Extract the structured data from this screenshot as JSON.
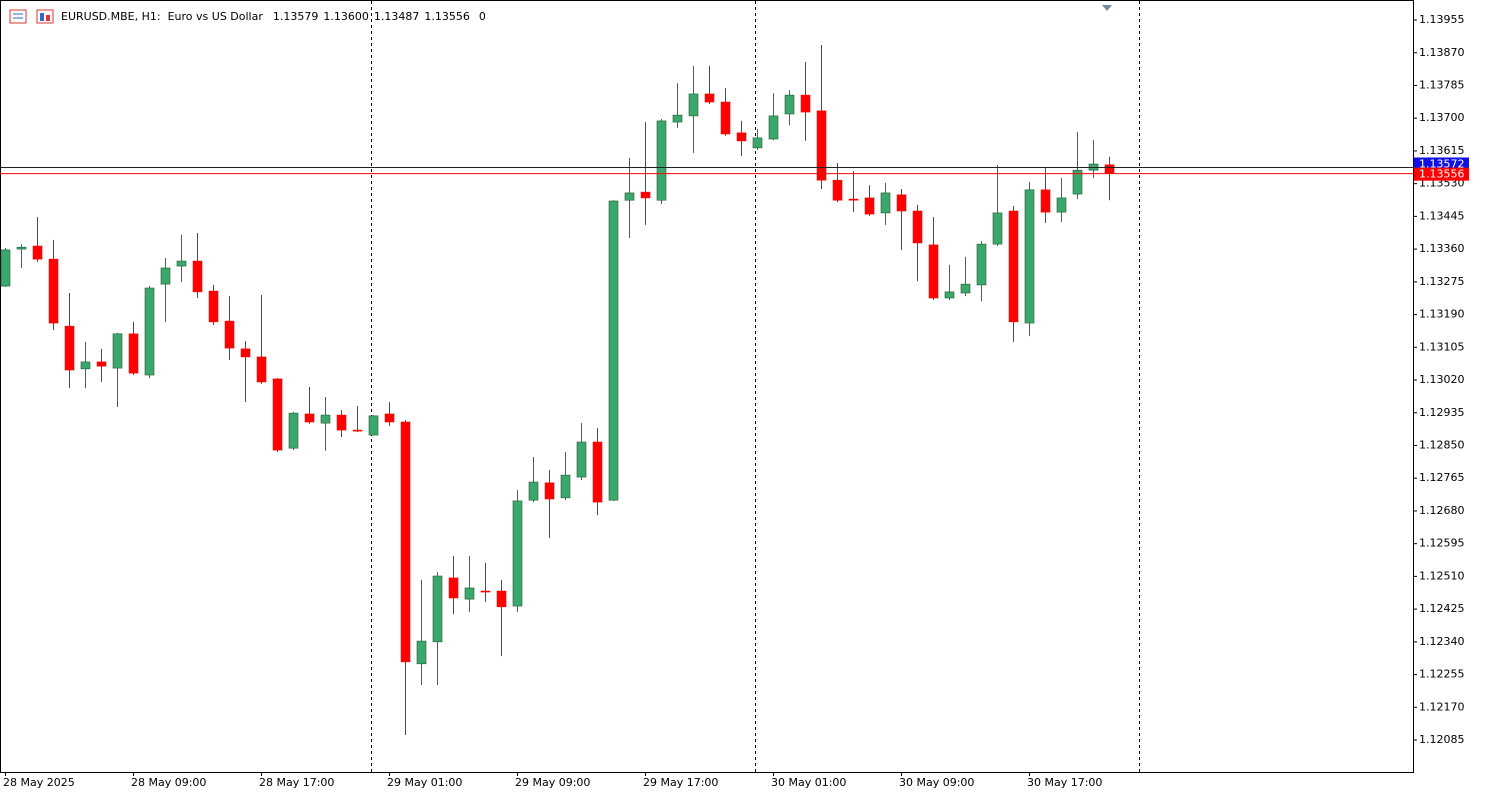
{
  "chart_data": {
    "type": "candlestick",
    "title": "EURUSD.MBE, H1:  Euro vs US Dollar",
    "last_bar_labels": [
      "1.13579",
      "1.13600",
      "1.13487",
      "1.13556"
    ],
    "info": "0",
    "categories": [
      "28 May 2025",
      null,
      null,
      null,
      null,
      null,
      null,
      null,
      "28 May 09:00",
      null,
      null,
      null,
      null,
      null,
      null,
      null,
      "28 May 17:00",
      null,
      null,
      null,
      null,
      null,
      null,
      null,
      "29 May 01:00",
      null,
      null,
      null,
      null,
      null,
      null,
      null,
      "29 May 09:00",
      null,
      null,
      null,
      null,
      null,
      null,
      null,
      "29 May 17:00",
      null,
      null,
      null,
      null,
      null,
      null,
      null,
      "30 May 01:00",
      null,
      null,
      null,
      null,
      null,
      null,
      null,
      "30 May 09:00",
      null,
      null,
      null,
      null,
      null,
      null,
      null,
      "30 May 17:00",
      null,
      null,
      null,
      null,
      null
    ],
    "open": [
      1.13264,
      1.1336,
      1.13368,
      1.13334,
      1.1316,
      1.13049,
      1.13067,
      1.13051,
      1.1314,
      1.13033,
      1.13269,
      1.13316,
      1.13329,
      1.13251,
      1.13173,
      1.13101,
      1.1308,
      1.13023,
      1.12843,
      1.12932,
      1.12908,
      1.12929,
      1.1289,
      1.12877,
      1.12932,
      1.12911,
      1.12283,
      1.1234,
      1.12506,
      1.12451,
      1.12472,
      1.12472,
      1.12433,
      1.12708,
      1.12753,
      1.12714,
      1.12768,
      1.12859,
      1.12708,
      1.13487,
      1.13508,
      1.13487,
      1.1369,
      1.13706,
      1.13763,
      1.13742,
      1.13662,
      1.13623,
      1.13646,
      1.13711,
      1.1376,
      1.13719,
      1.13539,
      1.1349,
      1.13493,
      1.13454,
      1.13501,
      1.13459,
      1.13371,
      1.13233,
      1.13246,
      1.13267,
      1.13373,
      1.13459,
      1.13168,
      1.13514,
      1.13456,
      1.13503,
      1.13565,
      1.13579
    ],
    "high": [
      1.13363,
      1.13373,
      1.13443,
      1.13384,
      1.13246,
      1.13119,
      1.13101,
      1.13142,
      1.13171,
      1.13264,
      1.13337,
      1.13397,
      1.13402,
      1.13267,
      1.13238,
      1.13121,
      1.13241,
      1.13025,
      1.12937,
      1.13002,
      1.12976,
      1.12942,
      1.12953,
      1.12929,
      1.12963,
      1.12916,
      1.12501,
      1.12521,
      1.12563,
      1.12563,
      1.12545,
      1.12501,
      1.12734,
      1.1282,
      1.12786,
      1.12833,
      1.12908,
      1.12895,
      1.13487,
      1.13597,
      1.1369,
      1.13698,
      1.13791,
      1.13836,
      1.13836,
      1.13778,
      1.13693,
      1.13672,
      1.13765,
      1.13773,
      1.13846,
      1.1389,
      1.13584,
      1.13563,
      1.13526,
      1.13532,
      1.13516,
      1.13475,
      1.13443,
      1.13319,
      1.1334,
      1.13381,
      1.13578,
      1.13472,
      1.13534,
      1.13573,
      1.13545,
      1.13664,
      1.13643,
      1.136
    ],
    "low": [
      1.13262,
      1.13311,
      1.13327,
      1.1315,
      1.12999,
      1.12999,
      1.13015,
      1.1295,
      1.13033,
      1.13025,
      1.13171,
      1.13275,
      1.13233,
      1.13163,
      1.13072,
      1.12963,
      1.1301,
      1.12833,
      1.12838,
      1.12906,
      1.12836,
      1.12872,
      1.12885,
      1.12877,
      1.12901,
      1.12098,
      1.12228,
      1.12228,
      1.12412,
      1.12418,
      1.12444,
      1.12303,
      1.12418,
      1.12703,
      1.1261,
      1.12708,
      1.1276,
      1.12669,
      1.12706,
      1.13389,
      1.13423,
      1.13477,
      1.13675,
      1.1361,
      1.13737,
      1.13654,
      1.13602,
      1.13617,
      1.13643,
      1.13682,
      1.13641,
      1.13516,
      1.13482,
      1.13456,
      1.13446,
      1.13423,
      1.13358,
      1.13277,
      1.13228,
      1.13228,
      1.13238,
      1.13225,
      1.13368,
      1.13119,
      1.13134,
      1.13428,
      1.1343,
      1.1349,
      1.13545,
      1.13487
    ],
    "close": [
      1.13358,
      1.13365,
      1.13334,
      1.13168,
      1.13046,
      1.13067,
      1.13056,
      1.1314,
      1.13038,
      1.13259,
      1.13311,
      1.13329,
      1.13249,
      1.13171,
      1.13103,
      1.1308,
      1.13015,
      1.12838,
      1.12934,
      1.12911,
      1.12929,
      1.1289,
      1.12888,
      1.12927,
      1.12911,
      1.12288,
      1.12342,
      1.12511,
      1.12454,
      1.1248,
      1.1247,
      1.12431,
      1.12706,
      1.12755,
      1.12711,
      1.12773,
      1.12859,
      1.12703,
      1.13485,
      1.13506,
      1.13493,
      1.13693,
      1.13708,
      1.13763,
      1.13742,
      1.13659,
      1.13641,
      1.13649,
      1.13706,
      1.1376,
      1.13716,
      1.13539,
      1.13487,
      1.13487,
      1.13451,
      1.13506,
      1.13459,
      1.13376,
      1.13233,
      1.13249,
      1.13269,
      1.13373,
      1.13454,
      1.13171,
      1.13514,
      1.13456,
      1.13493,
      1.13565,
      1.13581,
      1.13556
    ],
    "up_color": "#3aa868",
    "down_color": "#ff0000",
    "ylim": [
      1.12002,
      1.14007
    ],
    "yticks": [
      1.13955,
      {
        "value": 1.1387,
        "label": "1.13870"
      },
      1.13785,
      {
        "value": 1.137,
        "label": "1.13700"
      },
      1.13615,
      {
        "value": 1.1353,
        "label": "1.13530"
      },
      1.13445,
      {
        "value": 1.1336,
        "label": "1.13360"
      },
      1.13275,
      {
        "value": 1.1319,
        "label": "1.13190"
      },
      1.13105,
      {
        "value": 1.1302,
        "label": "1.13020"
      },
      1.12935,
      {
        "value": 1.1285,
        "label": "1.12850"
      },
      1.12765,
      {
        "value": 1.1268,
        "label": "1.12680"
      },
      1.12595,
      {
        "value": 1.1251,
        "label": "1.12510"
      },
      1.12425,
      {
        "value": 1.1234,
        "label": "1.12340"
      },
      1.12255,
      {
        "value": 1.1217,
        "label": "1.12170"
      },
      1.12085
    ],
    "grid": false,
    "ask_line": {
      "value": 1.13572,
      "color": "#1010e0"
    },
    "bid_line": {
      "value": 1.13556,
      "color": "#ff0000"
    }
  }
}
